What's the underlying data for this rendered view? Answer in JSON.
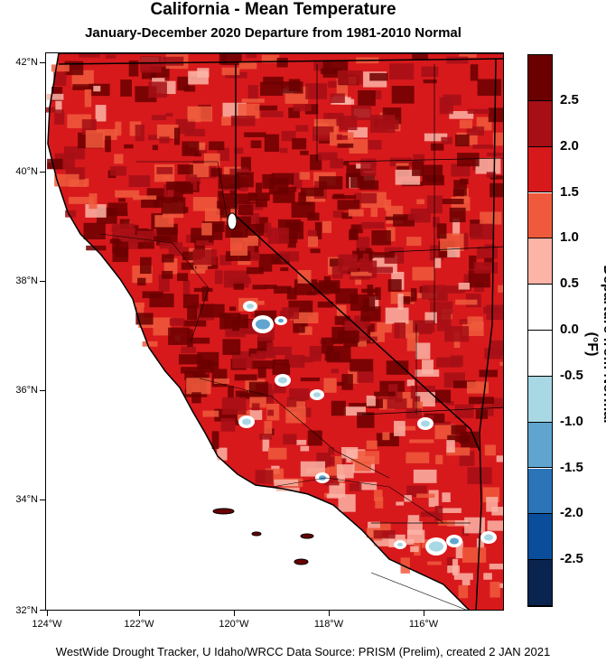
{
  "title": "California - Mean Temperature",
  "subtitle": "January-December 2020  Departure from 1981-2010 Normal",
  "footer": "WestWide Drought Tracker, U Idaho/WRCC Data Source: PRISM (Prelim), created  2 JAN 2021",
  "axes": {
    "y_labels": [
      "42°N",
      "40°N",
      "38°N",
      "36°N",
      "34°N",
      "32°N"
    ],
    "x_labels": [
      "124°W",
      "122°W",
      "120°W",
      "118°W",
      "116°W"
    ]
  },
  "colorbar": {
    "title": "Departure from Normal (°F)",
    "labels": [
      "2.5",
      "2.0",
      "1.5",
      "1.0",
      "0.5",
      "0.0",
      "-0.5",
      "-1.0",
      "-1.5",
      "-2.0",
      "-2.5"
    ],
    "colors": [
      "#6b0000",
      "#a50f15",
      "#d7191c",
      "#f05a3c",
      "#fbb4a6",
      "#ffffff",
      "#ffffff",
      "#a8d8e3",
      "#5fa5d0",
      "#2b74b8",
      "#0a4e9b",
      "#08244f"
    ]
  },
  "map_colors": {
    "ocean": "#ffffff",
    "land_base": "#d7191c",
    "hot": "#6b0000",
    "warm": "#a50f15",
    "mild": "#f05a3c",
    "light": "#fbb4a6",
    "cool": "#a8d8e3",
    "cooler": "#5fa5d0"
  }
}
